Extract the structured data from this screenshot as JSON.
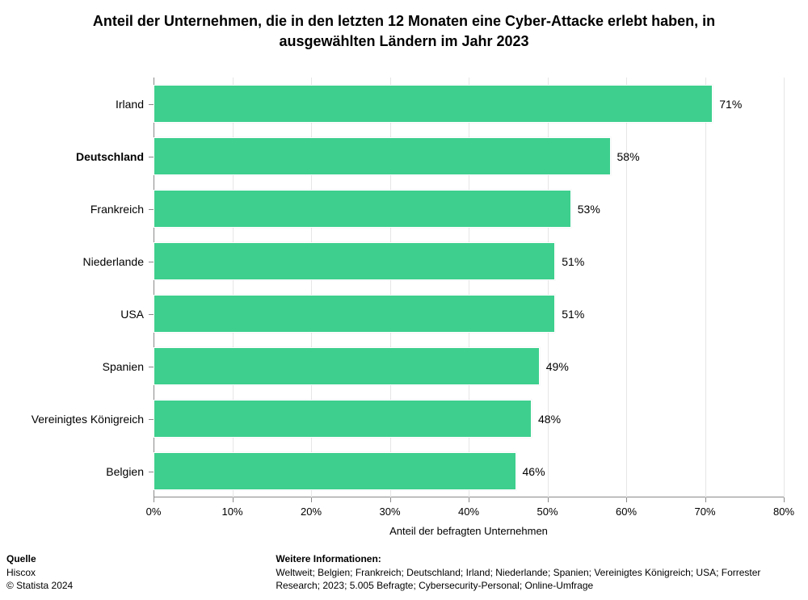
{
  "title": "Anteil der Unternehmen, die in den letzten 12 Monaten eine Cyber-Attacke erlebt haben, in ausgewählten Ländern im Jahr 2023",
  "title_fontsize": 18,
  "chart": {
    "type": "bar-horizontal",
    "categories": [
      {
        "label": "Irland",
        "value": 71,
        "value_label": "71%",
        "bold": false
      },
      {
        "label": "Deutschland",
        "value": 58,
        "value_label": "58%",
        "bold": true
      },
      {
        "label": "Frankreich",
        "value": 53,
        "value_label": "53%",
        "bold": false
      },
      {
        "label": "Niederlande",
        "value": 51,
        "value_label": "51%",
        "bold": false
      },
      {
        "label": "USA",
        "value": 51,
        "value_label": "51%",
        "bold": false
      },
      {
        "label": "Spanien",
        "value": 49,
        "value_label": "49%",
        "bold": false
      },
      {
        "label": "Vereinigtes Königreich",
        "value": 48,
        "value_label": "48%",
        "bold": false
      },
      {
        "label": "Belgien",
        "value": 46,
        "value_label": "46%",
        "bold": false
      }
    ],
    "bar_color": "#3ecf8e",
    "background_color": "#ffffff",
    "grid_color": "#e6e6e6",
    "axis_color": "#8a8a8a",
    "xaxis": {
      "min": 0,
      "max": 80,
      "tick_step": 10,
      "tick_suffix": "%",
      "title": "Anteil der befragten Unternehmen",
      "title_fontsize": 13,
      "tick_fontsize": 13
    },
    "yaxis": {
      "tick_fontsize": 14
    },
    "bar_label_fontsize": 14,
    "bar_label_color": "#000000"
  },
  "footer": {
    "source": {
      "heading": "Quelle",
      "line1": "Hiscox",
      "line2": "© Statista 2024"
    },
    "info": {
      "heading": "Weitere Informationen:",
      "text": "Weltweit; Belgien; Frankreich; Deutschland; Irland; Niederlande; Spanien; Vereinigtes Königreich; USA; Forrester Research; 2023; 5.005 Befragte; Cybersecurity-Personal; Online-Umfrage"
    }
  }
}
